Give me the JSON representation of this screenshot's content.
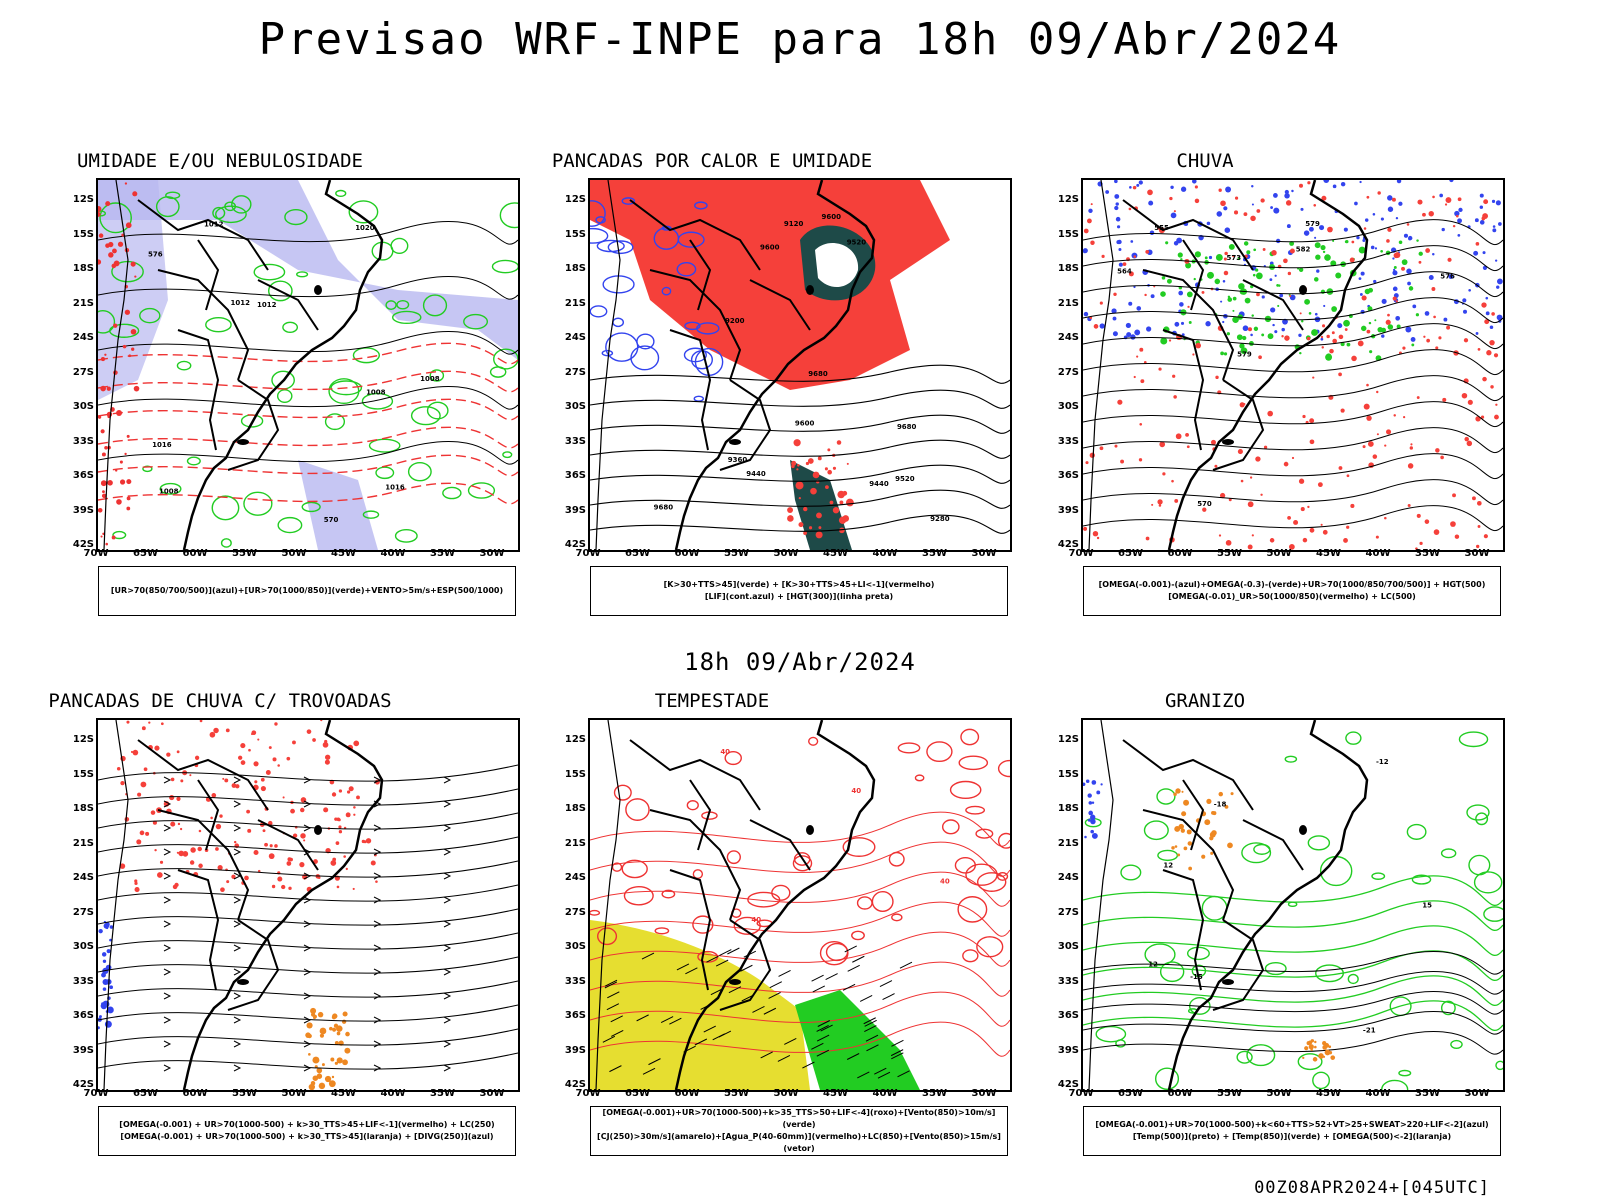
{
  "header": {
    "title": "Previsao WRF-INPE  para 18h 09/Abr/2024"
  },
  "mid_title": "18h 09/Abr/2024",
  "footer": {
    "stamp": "00Z08APR2024+[045UTC]"
  },
  "axes": {
    "lat_labels": [
      "12S",
      "15S",
      "18S",
      "21S",
      "24S",
      "27S",
      "30S",
      "33S",
      "36S",
      "39S",
      "42S"
    ],
    "lon_labels": [
      "70W",
      "65W",
      "60W",
      "55W",
      "50W",
      "45W",
      "40W",
      "35W",
      "30W"
    ]
  },
  "colors": {
    "humidity_blue": "#b8b8f0",
    "green_contour": "#22cc22",
    "red_contour": "#ee3333",
    "red_fill": "#f5403a",
    "blue_contour": "#3344ee",
    "dark_teal": "#1e4a48",
    "yellow_fill": "#e6de30",
    "orange": "#ee8822"
  },
  "panels": [
    {
      "title": "UMIDADE E/OU NEBULOSIDADE",
      "legend": [
        "[UR>70(850/700/500)](azul)+[UR>70(1000/850)](verde)+VENTO>5m/s+ESP(500/1000)"
      ],
      "labels": [
        "1008",
        "1008",
        "1008",
        "1012",
        "1012",
        "1016",
        "1016",
        "1020",
        "1012",
        "570",
        "576"
      ]
    },
    {
      "title": "PANCADAS POR CALOR E UMIDADE",
      "legend": [
        "[K>30+TTS>45](verde) + [K>30+TTS>45+LI<-1](vermelho)",
        "[LIF](cont.azul) + [HGT(300)](linha preta)"
      ],
      "labels": [
        "9680",
        "9680",
        "9680",
        "9600",
        "9600",
        "9600",
        "9520",
        "9520",
        "9440",
        "9360",
        "9280",
        "9200",
        "9440",
        "9120"
      ]
    },
    {
      "title": "CHUVA",
      "legend": [
        "[OMEGA(-0.001)-(azul)+OMEGA(-0.3)-(verde)+UR>70(1000/850/700/500)] + HGT(500)",
        "[OMEGA(-0.01)_UR>50(1000/850)(vermelho) + LC(500)"
      ],
      "labels": [
        "582",
        "579",
        "576",
        "573",
        "570",
        "564",
        "555",
        "579"
      ]
    },
    {
      "title": "PANCADAS DE CHUVA C/ TROVOADAS",
      "legend": [
        "[OMEGA(-0.001) + UR>70(1000-500) + k>30_TTS>45+LIF<-1](vermelho) + LC(250)",
        "[OMEGA(-0.001) + UR>70(1000-500) + k>30_TTS>45](laranja) + [DIVG(250)](azul)"
      ],
      "labels": []
    },
    {
      "title": "TEMPESTADE",
      "legend": [
        "[OMEGA(-0.001)+UR>70(1000-500)+k>35_TTS>50+LIF<-4](roxo)+[Vento(850)>10m/s](verde)",
        "[CJ(250)>30m/s](amarelo)+[Agua_P(40-60mm)](vermelho)+LC(850)+[Vento(850)>15m/s](vetor)"
      ],
      "labels": [
        "40",
        "40",
        "40",
        "40"
      ]
    },
    {
      "title": "GRANIZO",
      "legend": [
        "[OMEGA(-0.001)+UR>70(1000-500)+k<60+TTS>52+VT>25+SWEAT>220+LIF<-2](azul)",
        "[Temp(500)](preto) + [Temp(850)](verde) + [OMEGA(500)<-2](laranja)"
      ],
      "labels": [
        "-12",
        "-15",
        "-18",
        "-21",
        "12",
        "12",
        "15"
      ]
    }
  ]
}
